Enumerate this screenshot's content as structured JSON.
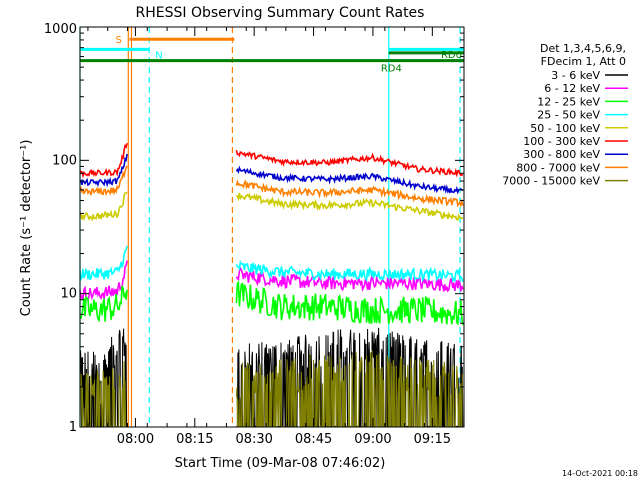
{
  "chart_data": {
    "type": "line",
    "title": "RHESSI Observing Summary Count Rates",
    "xlabel": "Start Time (09-Mar-08 07:46:02)",
    "ylabel": "Count Rate (s⁻¹ detector⁻¹)",
    "yscale": "log",
    "ylim": [
      1,
      1000
    ],
    "xlim_minutes_after_0746": [
      0,
      97
    ],
    "x_tick_labels": [
      "08:00",
      "08:15",
      "08:30",
      "08:45",
      "09:00",
      "09:15"
    ],
    "x_tick_minutes_after_0746": [
      14,
      29,
      44,
      59,
      74,
      89
    ],
    "y_tick_labels": [
      "1",
      "10",
      "100",
      "1000"
    ],
    "y_tick_values": [
      1,
      10,
      100,
      1000
    ],
    "data_gap_minutes": [
      12.5,
      39
    ],
    "legend_header": [
      "Det 1,3,4,5,6,9,",
      "FDecim 1, Att 0"
    ],
    "timestamp": "14-Oct-2021 00:18",
    "series": [
      {
        "name": "3 - 6 keV",
        "color": "#000000",
        "before_gap": [
          2.5,
          2.8,
          4.0
        ],
        "after_gap": [
          2.8,
          3.0,
          3.6,
          3.8,
          3.2,
          2.9
        ],
        "noise": 0.12
      },
      {
        "name": "6 - 12 keV",
        "color": "#ff00ff",
        "before_gap": [
          10,
          10.5,
          16
        ],
        "after_gap": [
          14,
          12.5,
          12,
          12,
          12,
          11.5
        ],
        "noise": 0.03
      },
      {
        "name": "12 - 25 keV",
        "color": "#00ff00",
        "before_gap": [
          7.5,
          8,
          11
        ],
        "after_gap": [
          10,
          8,
          8,
          7.5,
          7.5,
          7
        ],
        "noise": 0.06
      },
      {
        "name": "25 - 50 keV",
        "color": "#00ffff",
        "before_gap": [
          14,
          14.5,
          22
        ],
        "after_gap": [
          16,
          14.5,
          14,
          14,
          14,
          13.5
        ],
        "noise": 0.025
      },
      {
        "name": "50 - 100 keV",
        "color": "#cccc00",
        "before_gap": [
          38,
          40,
          60
        ],
        "after_gap": [
          55,
          47,
          46,
          48,
          42,
          37
        ],
        "noise": 0.015
      },
      {
        "name": "100 - 300 keV",
        "color": "#ff0000",
        "before_gap": [
          80,
          82,
          140
        ],
        "after_gap": [
          115,
          98,
          96,
          105,
          86,
          80
        ],
        "noise": 0.012
      },
      {
        "name": "300 - 800 keV",
        "color": "#0000cc",
        "before_gap": [
          68,
          70,
          110
        ],
        "after_gap": [
          85,
          74,
          72,
          76,
          64,
          58
        ],
        "noise": 0.012
      },
      {
        "name": "800 - 7000 keV",
        "color": "#ff8000",
        "before_gap": [
          58,
          60,
          95
        ],
        "after_gap": [
          68,
          58,
          57,
          60,
          52,
          48
        ],
        "noise": 0.015
      },
      {
        "name": "7000 - 15000 keV",
        "color": "#808000",
        "before_gap": [
          1.7,
          1.8,
          2.5
        ],
        "after_gap": [
          2.0,
          2.2,
          2.4,
          2.5,
          2.2,
          2.0
        ],
        "noise": 0.2
      }
    ],
    "annotations": [
      {
        "label": "S",
        "color": "#ff8000",
        "type": "saa",
        "start_minute": 12.5,
        "end_minute": 39,
        "level": 810
      },
      {
        "label": "N",
        "color": "#00ffff",
        "type": "night",
        "segments": [
          [
            0,
            17.5
          ],
          [
            78,
            97
          ]
        ],
        "level": 680
      },
      {
        "label": "RD4",
        "color": "#008000",
        "type": "decimation",
        "start_minute": 0,
        "end_minute": 97,
        "level": 560
      },
      {
        "label": "RD0",
        "color": "#008000",
        "type": "decimation",
        "start_minute": 78,
        "end_minute": 97,
        "level": 640
      }
    ],
    "vertical_lines": [
      {
        "minute": 0,
        "color": "#00ffff",
        "style": "solid"
      },
      {
        "minute": 12.2,
        "color": "#ff8000",
        "style": "solid"
      },
      {
        "minute": 13.0,
        "color": "#ff8000",
        "style": "solid"
      },
      {
        "minute": 17.5,
        "color": "#00ffff",
        "style": "dashed"
      },
      {
        "minute": 38.5,
        "color": "#ff8000",
        "style": "dashed"
      },
      {
        "minute": 78,
        "color": "#00ffff",
        "style": "solid"
      },
      {
        "minute": 96,
        "color": "#00ffff",
        "style": "dashed"
      }
    ]
  }
}
